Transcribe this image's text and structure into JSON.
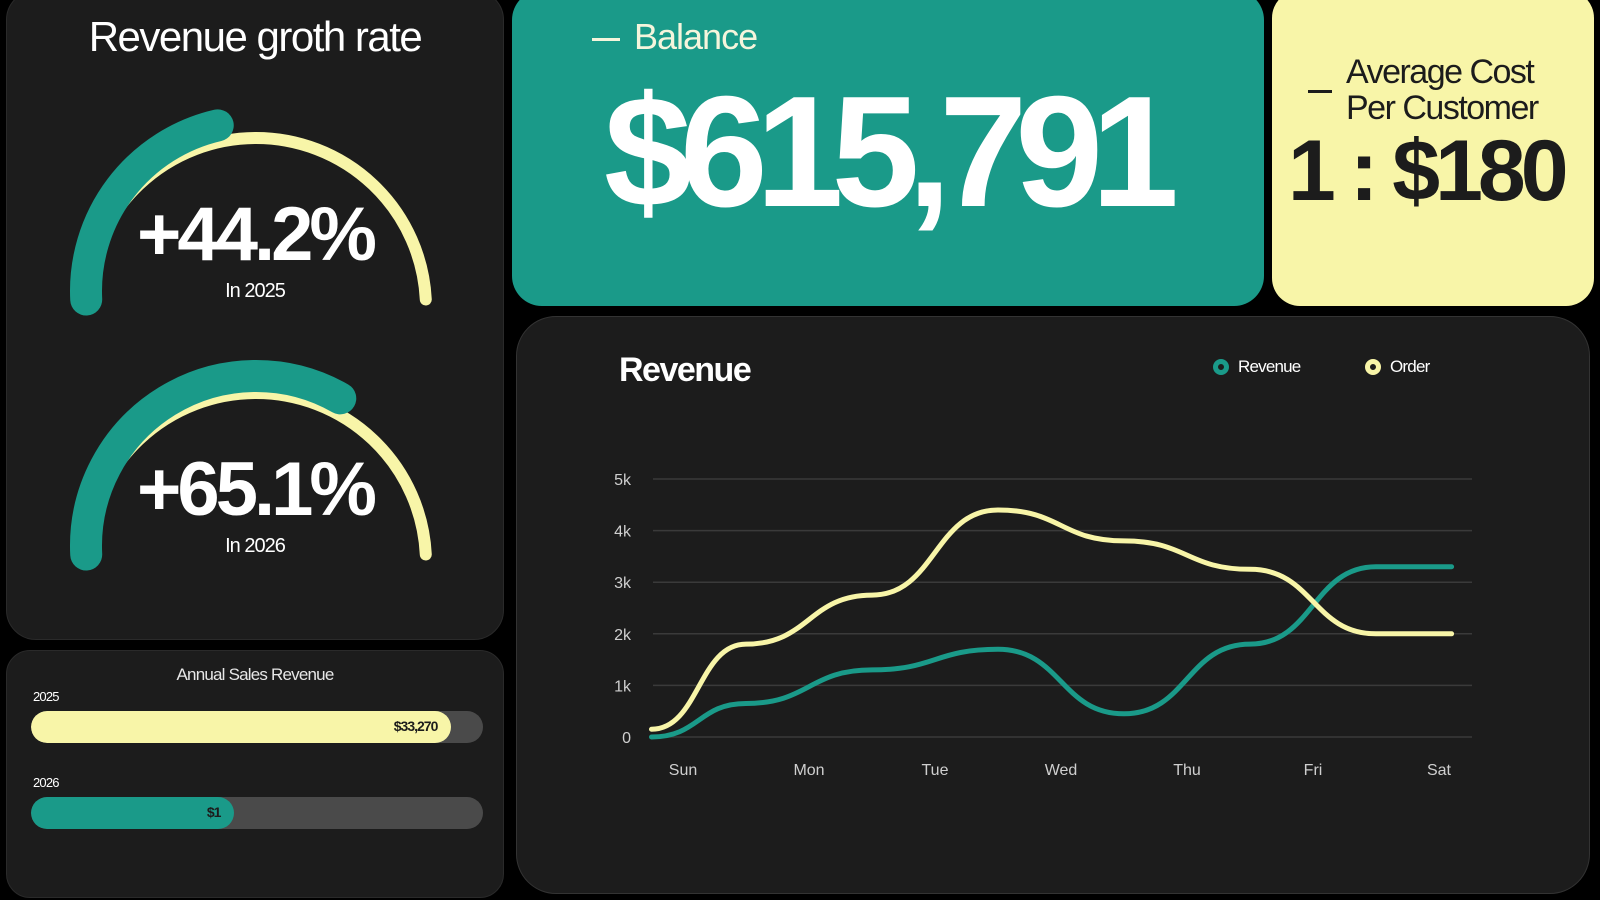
{
  "growth": {
    "title": "Revenue groth rate",
    "gauges": [
      {
        "value": "+44.2%",
        "sub": "In 2025",
        "fraction": 0.43
      },
      {
        "value": "+65.1%",
        "sub": "In 2026",
        "fraction": 0.66
      }
    ]
  },
  "annual": {
    "title": "Annual Sales Revenue",
    "bars": [
      {
        "year": "2025",
        "label": "$33,270",
        "fraction": 0.93,
        "color": "#f8f5a8"
      },
      {
        "year": "2026",
        "label": "$1",
        "fraction": 0.45,
        "color": "#1a9a89"
      }
    ]
  },
  "balance": {
    "label": "Balance",
    "value": "$615,791"
  },
  "avg_cost": {
    "label_line1": "Average Cost",
    "label_line2": "Per Customer",
    "value": "1 : $180"
  },
  "revenue": {
    "title": "Revenue",
    "legend": [
      {
        "name": "Revenue",
        "color": "#1a9a89"
      },
      {
        "name": "Order",
        "color": "#f8f5a8"
      }
    ]
  },
  "colors": {
    "teal": "#1a9a89",
    "yellow": "#f8f5a8",
    "card": "#1c1c1c",
    "track": "#4a4a4a"
  },
  "chart_data": {
    "type": "line",
    "categories": [
      "Sun",
      "Mon",
      "Tue",
      "Wed",
      "Thu",
      "Fri",
      "Sat"
    ],
    "y_ticks": [
      "0",
      "1k",
      "2k",
      "3k",
      "4k",
      "5k"
    ],
    "ylim": [
      0,
      5000
    ],
    "grid": true,
    "legend_position": "top-right",
    "series": [
      {
        "name": "Revenue",
        "x": [
          -0.25,
          0.5,
          1.5,
          2.5,
          3.5,
          4.5,
          5.5,
          6.1
        ],
        "values": [
          0,
          650,
          1300,
          1700,
          450,
          1800,
          3300,
          3300
        ],
        "color": "#1a9a89"
      },
      {
        "name": "Order",
        "x": [
          -0.25,
          0.5,
          1.5,
          2.5,
          3.5,
          4.5,
          5.5,
          6.1
        ],
        "values": [
          150,
          1800,
          2750,
          4400,
          3800,
          3250,
          2000,
          2000
        ],
        "color": "#f8f5a8"
      }
    ]
  }
}
